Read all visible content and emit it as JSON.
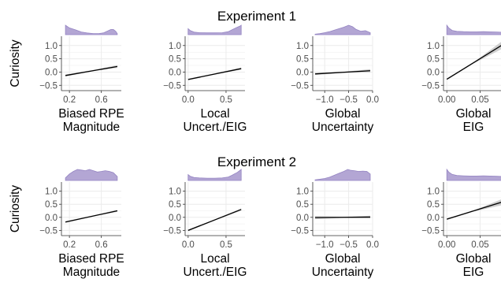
{
  "chart_data": [
    {
      "title": "Experiment 1",
      "ylabel": "Curiosity",
      "panels": [
        {
          "type": "line",
          "xlabel": [
            "Biased RPE",
            "Magnitude"
          ],
          "xlim": [
            0.1,
            0.85
          ],
          "xticks": [
            0.2,
            0.6
          ],
          "xtick_labels": [
            "0.2",
            "0.6"
          ],
          "ylim": [
            -0.7,
            1.35
          ],
          "yticks": [
            -0.5,
            0.0,
            0.5,
            1.0
          ],
          "ytick_labels": [
            "−0.5",
            "0.0",
            "0.5",
            "1.0"
          ],
          "line": {
            "x": [
              0.15,
              0.8
            ],
            "y": [
              -0.13,
              0.21
            ]
          },
          "ci": {
            "x": [
              0.15,
              0.48,
              0.8
            ],
            "lo": [
              -0.17,
              0.03,
              0.16
            ],
            "hi": [
              -0.09,
              0.07,
              0.26
            ]
          },
          "density": {
            "x": [
              0.15,
              0.2,
              0.28,
              0.35,
              0.42,
              0.5,
              0.57,
              0.63,
              0.68,
              0.72,
              0.75,
              0.78,
              0.8
            ],
            "y": [
              1.0,
              0.72,
              0.5,
              0.28,
              0.18,
              0.12,
              0.12,
              0.2,
              0.4,
              0.55,
              0.55,
              0.35,
              0.1
            ]
          }
        },
        {
          "type": "line",
          "xlabel": [
            "Local",
            "Uncert./EIG"
          ],
          "xlim": [
            -0.04,
            0.75
          ],
          "xticks": [
            0.0,
            0.5
          ],
          "xtick_labels": [
            "0.0",
            "0.5"
          ],
          "ylim": [
            -0.7,
            1.35
          ],
          "yticks": [
            -0.5,
            0.0,
            0.5,
            1.0
          ],
          "ytick_labels": [
            "−0.5",
            "0.0",
            "0.5",
            "1.0"
          ],
          "line": {
            "x": [
              0.0,
              0.7
            ],
            "y": [
              -0.28,
              0.13
            ]
          },
          "ci": {
            "x": [
              0.0,
              0.35,
              0.7
            ],
            "lo": [
              -0.31,
              -0.09,
              0.09
            ],
            "hi": [
              -0.25,
              -0.05,
              0.17
            ]
          },
          "density": {
            "x": [
              0.0,
              0.03,
              0.08,
              0.15,
              0.25,
              0.35,
              0.45,
              0.53,
              0.58,
              0.62,
              0.65,
              0.68,
              0.7
            ],
            "y": [
              0.6,
              0.4,
              0.25,
              0.2,
              0.18,
              0.18,
              0.2,
              0.3,
              0.5,
              0.65,
              0.75,
              0.85,
              0.95
            ]
          }
        },
        {
          "type": "line",
          "xlabel": [
            "Global",
            "Uncertainty"
          ],
          "xlim": [
            -1.25,
            0.0
          ],
          "xticks": [
            -1.0,
            -0.5,
            0.0
          ],
          "xtick_labels": [
            "−1.0",
            "−0.5",
            "0.0"
          ],
          "ylim": [
            -0.7,
            1.35
          ],
          "yticks": [
            -0.5,
            0.0,
            0.5,
            1.0
          ],
          "ytick_labels": [
            "−0.5",
            "0.0",
            "0.5",
            "1.0"
          ],
          "line": {
            "x": [
              -1.2,
              -0.05
            ],
            "y": [
              -0.07,
              0.05
            ]
          },
          "ci": {
            "x": [
              -1.2,
              -0.6,
              -0.05
            ],
            "lo": [
              -0.11,
              -0.03,
              -0.01
            ],
            "hi": [
              -0.03,
              0.01,
              0.11
            ]
          },
          "density": {
            "x": [
              -1.2,
              -1.1,
              -1.0,
              -0.9,
              -0.8,
              -0.7,
              -0.6,
              -0.5,
              -0.42,
              -0.35,
              -0.25,
              -0.15,
              -0.05
            ],
            "y": [
              0.05,
              0.1,
              0.2,
              0.3,
              0.45,
              0.6,
              0.75,
              0.95,
              0.8,
              0.55,
              0.35,
              0.4,
              0.2
            ]
          }
        },
        {
          "type": "line",
          "xlabel": [
            "Global",
            "EIG"
          ],
          "xlim": [
            -0.005,
            0.085
          ],
          "xticks": [
            0.0,
            0.05
          ],
          "xtick_labels": [
            "0.00",
            "0.05"
          ],
          "ylim": [
            -0.7,
            1.35
          ],
          "yticks": [
            -0.5,
            0.0,
            0.5,
            1.0
          ],
          "ytick_labels": [
            "−0.5",
            "0.0",
            "0.5",
            "1.0"
          ],
          "line": {
            "x": [
              0.0,
              0.085
            ],
            "y": [
              -0.27,
              1.05
            ]
          },
          "ci": {
            "x": [
              0.0,
              0.04,
              0.085
            ],
            "lo": [
              -0.3,
              0.32,
              0.9
            ],
            "hi": [
              -0.24,
              0.36,
              1.2
            ]
          },
          "density": {
            "x": [
              0.0,
              0.003,
              0.008,
              0.015,
              0.025,
              0.035,
              0.045,
              0.055,
              0.065,
              0.075,
              0.085
            ],
            "y": [
              1.0,
              0.7,
              0.45,
              0.35,
              0.32,
              0.3,
              0.3,
              0.32,
              0.3,
              0.28,
              0.25
            ]
          }
        }
      ]
    },
    {
      "title": "Experiment 2",
      "ylabel": "Curiosity",
      "panels": [
        {
          "type": "line",
          "xlabel": [
            "Biased RPE",
            "Magnitude"
          ],
          "xlim": [
            0.1,
            0.85
          ],
          "xticks": [
            0.2,
            0.6
          ],
          "xtick_labels": [
            "0.2",
            "0.6"
          ],
          "ylim": [
            -0.7,
            1.35
          ],
          "yticks": [
            -0.5,
            0.0,
            0.5,
            1.0
          ],
          "ytick_labels": [
            "−0.5",
            "0.0",
            "0.5",
            "1.0"
          ],
          "line": {
            "x": [
              0.15,
              0.8
            ],
            "y": [
              -0.18,
              0.25
            ]
          },
          "ci": {
            "x": [
              0.15,
              0.48,
              0.8
            ],
            "lo": [
              -0.21,
              0.02,
              0.21
            ],
            "hi": [
              -0.15,
              0.06,
              0.29
            ]
          },
          "density": {
            "x": [
              0.15,
              0.2,
              0.25,
              0.3,
              0.35,
              0.4,
              0.45,
              0.5,
              0.55,
              0.6,
              0.65,
              0.7,
              0.75,
              0.8
            ],
            "y": [
              0.2,
              0.5,
              0.7,
              0.85,
              0.8,
              0.75,
              0.85,
              0.75,
              0.65,
              0.7,
              0.75,
              0.7,
              0.6,
              0.3
            ]
          }
        },
        {
          "type": "line",
          "xlabel": [
            "Local",
            "Uncert./EIG"
          ],
          "xlim": [
            -0.04,
            0.75
          ],
          "xticks": [
            0.0,
            0.5
          ],
          "xtick_labels": [
            "0.0",
            "0.5"
          ],
          "ylim": [
            -0.7,
            1.35
          ],
          "yticks": [
            -0.5,
            0.0,
            0.5,
            1.0
          ],
          "ytick_labels": [
            "−0.5",
            "0.0",
            "0.5",
            "1.0"
          ],
          "line": {
            "x": [
              0.0,
              0.7
            ],
            "y": [
              -0.5,
              0.3
            ]
          },
          "ci": {
            "x": [
              0.0,
              0.35,
              0.7
            ],
            "lo": [
              -0.53,
              -0.12,
              0.26
            ],
            "hi": [
              -0.47,
              -0.08,
              0.34
            ]
          },
          "density": {
            "x": [
              0.0,
              0.03,
              0.08,
              0.15,
              0.25,
              0.35,
              0.45,
              0.53,
              0.58,
              0.62,
              0.65,
              0.68,
              0.7
            ],
            "y": [
              0.5,
              0.35,
              0.25,
              0.22,
              0.2,
              0.2,
              0.22,
              0.3,
              0.45,
              0.6,
              0.7,
              0.85,
              0.95
            ]
          }
        },
        {
          "type": "line",
          "xlabel": [
            "Global",
            "Uncertainty"
          ],
          "xlim": [
            -1.25,
            0.0
          ],
          "xticks": [
            -1.0,
            -0.5,
            0.0
          ],
          "xtick_labels": [
            "−1.0",
            "−0.5",
            "0.0"
          ],
          "ylim": [
            -0.7,
            1.35
          ],
          "yticks": [
            -0.5,
            0.0,
            0.5,
            1.0
          ],
          "ytick_labels": [
            "−0.5",
            "0.0",
            "0.5",
            "1.0"
          ],
          "line": {
            "x": [
              -1.2,
              -0.05
            ],
            "y": [
              -0.01,
              0.01
            ]
          },
          "ci": {
            "x": [
              -1.2,
              -0.6,
              -0.05
            ],
            "lo": [
              -0.07,
              -0.02,
              -0.04
            ],
            "hi": [
              0.05,
              0.02,
              0.06
            ]
          },
          "density": {
            "x": [
              -1.2,
              -1.1,
              -1.0,
              -0.9,
              -0.8,
              -0.7,
              -0.6,
              -0.52,
              -0.45,
              -0.38,
              -0.3,
              -0.2,
              -0.12,
              -0.05
            ],
            "y": [
              0.05,
              0.1,
              0.15,
              0.25,
              0.4,
              0.55,
              0.7,
              0.85,
              0.78,
              0.75,
              0.7,
              0.72,
              0.7,
              0.5
            ]
          }
        },
        {
          "type": "line",
          "xlabel": [
            "Global",
            "EIG"
          ],
          "xlim": [
            -0.005,
            0.085
          ],
          "xticks": [
            0.0,
            0.05
          ],
          "xtick_labels": [
            "0.00",
            "0.05"
          ],
          "ylim": [
            -0.7,
            1.35
          ],
          "yticks": [
            -0.5,
            0.0,
            0.5,
            1.0
          ],
          "ytick_labels": [
            "−0.5",
            "0.0",
            "0.5",
            "1.0"
          ],
          "line": {
            "x": [
              0.0,
              0.085
            ],
            "y": [
              -0.07,
              0.6
            ]
          },
          "ci": {
            "x": [
              0.0,
              0.04,
              0.085
            ],
            "lo": [
              -0.1,
              0.22,
              0.48
            ],
            "hi": [
              -0.04,
              0.26,
              0.72
            ]
          },
          "density": {
            "x": [
              0.0,
              0.003,
              0.008,
              0.015,
              0.025,
              0.035,
              0.045,
              0.055,
              0.065,
              0.075,
              0.085
            ],
            "y": [
              1.0,
              0.75,
              0.55,
              0.45,
              0.42,
              0.4,
              0.4,
              0.42,
              0.4,
              0.38,
              0.35
            ]
          }
        }
      ]
    }
  ],
  "colors": {
    "density_fill": "#b3a6d4",
    "density_stroke": "#9484c2",
    "line": "#000000",
    "ci_fill": "#bdbdbd",
    "grid": "#ebebeb",
    "axis_text": "#4d4d4d"
  }
}
